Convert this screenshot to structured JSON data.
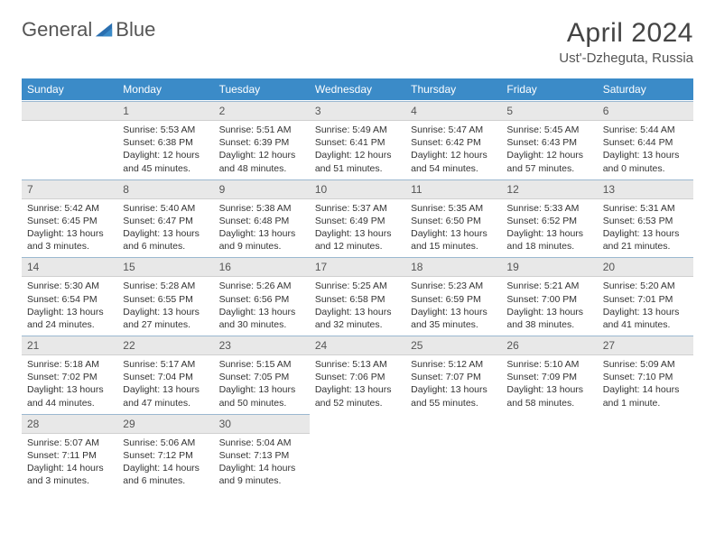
{
  "logo": {
    "text_left": "General",
    "text_right": "Blue"
  },
  "title": "April 2024",
  "subtitle": "Ust'-Dzheguta, Russia",
  "colors": {
    "header_bg": "#3b8bc8",
    "header_fg": "#ffffff",
    "daynum_bg": "#e8e8e8",
    "daynum_border_top": "#9bb8d0",
    "text": "#333333",
    "logo_text": "#555555",
    "logo_accent": "#2a6fb0"
  },
  "weekdays": [
    "Sunday",
    "Monday",
    "Tuesday",
    "Wednesday",
    "Thursday",
    "Friday",
    "Saturday"
  ],
  "first_weekday_index": 1,
  "days": [
    {
      "n": 1,
      "sunrise": "5:53 AM",
      "sunset": "6:38 PM",
      "daylight": "12 hours and 45 minutes."
    },
    {
      "n": 2,
      "sunrise": "5:51 AM",
      "sunset": "6:39 PM",
      "daylight": "12 hours and 48 minutes."
    },
    {
      "n": 3,
      "sunrise": "5:49 AM",
      "sunset": "6:41 PM",
      "daylight": "12 hours and 51 minutes."
    },
    {
      "n": 4,
      "sunrise": "5:47 AM",
      "sunset": "6:42 PM",
      "daylight": "12 hours and 54 minutes."
    },
    {
      "n": 5,
      "sunrise": "5:45 AM",
      "sunset": "6:43 PM",
      "daylight": "12 hours and 57 minutes."
    },
    {
      "n": 6,
      "sunrise": "5:44 AM",
      "sunset": "6:44 PM",
      "daylight": "13 hours and 0 minutes."
    },
    {
      "n": 7,
      "sunrise": "5:42 AM",
      "sunset": "6:45 PM",
      "daylight": "13 hours and 3 minutes."
    },
    {
      "n": 8,
      "sunrise": "5:40 AM",
      "sunset": "6:47 PM",
      "daylight": "13 hours and 6 minutes."
    },
    {
      "n": 9,
      "sunrise": "5:38 AM",
      "sunset": "6:48 PM",
      "daylight": "13 hours and 9 minutes."
    },
    {
      "n": 10,
      "sunrise": "5:37 AM",
      "sunset": "6:49 PM",
      "daylight": "13 hours and 12 minutes."
    },
    {
      "n": 11,
      "sunrise": "5:35 AM",
      "sunset": "6:50 PM",
      "daylight": "13 hours and 15 minutes."
    },
    {
      "n": 12,
      "sunrise": "5:33 AM",
      "sunset": "6:52 PM",
      "daylight": "13 hours and 18 minutes."
    },
    {
      "n": 13,
      "sunrise": "5:31 AM",
      "sunset": "6:53 PM",
      "daylight": "13 hours and 21 minutes."
    },
    {
      "n": 14,
      "sunrise": "5:30 AM",
      "sunset": "6:54 PM",
      "daylight": "13 hours and 24 minutes."
    },
    {
      "n": 15,
      "sunrise": "5:28 AM",
      "sunset": "6:55 PM",
      "daylight": "13 hours and 27 minutes."
    },
    {
      "n": 16,
      "sunrise": "5:26 AM",
      "sunset": "6:56 PM",
      "daylight": "13 hours and 30 minutes."
    },
    {
      "n": 17,
      "sunrise": "5:25 AM",
      "sunset": "6:58 PM",
      "daylight": "13 hours and 32 minutes."
    },
    {
      "n": 18,
      "sunrise": "5:23 AM",
      "sunset": "6:59 PM",
      "daylight": "13 hours and 35 minutes."
    },
    {
      "n": 19,
      "sunrise": "5:21 AM",
      "sunset": "7:00 PM",
      "daylight": "13 hours and 38 minutes."
    },
    {
      "n": 20,
      "sunrise": "5:20 AM",
      "sunset": "7:01 PM",
      "daylight": "13 hours and 41 minutes."
    },
    {
      "n": 21,
      "sunrise": "5:18 AM",
      "sunset": "7:02 PM",
      "daylight": "13 hours and 44 minutes."
    },
    {
      "n": 22,
      "sunrise": "5:17 AM",
      "sunset": "7:04 PM",
      "daylight": "13 hours and 47 minutes."
    },
    {
      "n": 23,
      "sunrise": "5:15 AM",
      "sunset": "7:05 PM",
      "daylight": "13 hours and 50 minutes."
    },
    {
      "n": 24,
      "sunrise": "5:13 AM",
      "sunset": "7:06 PM",
      "daylight": "13 hours and 52 minutes."
    },
    {
      "n": 25,
      "sunrise": "5:12 AM",
      "sunset": "7:07 PM",
      "daylight": "13 hours and 55 minutes."
    },
    {
      "n": 26,
      "sunrise": "5:10 AM",
      "sunset": "7:09 PM",
      "daylight": "13 hours and 58 minutes."
    },
    {
      "n": 27,
      "sunrise": "5:09 AM",
      "sunset": "7:10 PM",
      "daylight": "14 hours and 1 minute."
    },
    {
      "n": 28,
      "sunrise": "5:07 AM",
      "sunset": "7:11 PM",
      "daylight": "14 hours and 3 minutes."
    },
    {
      "n": 29,
      "sunrise": "5:06 AM",
      "sunset": "7:12 PM",
      "daylight": "14 hours and 6 minutes."
    },
    {
      "n": 30,
      "sunrise": "5:04 AM",
      "sunset": "7:13 PM",
      "daylight": "14 hours and 9 minutes."
    }
  ],
  "labels": {
    "sunrise_prefix": "Sunrise: ",
    "sunset_prefix": "Sunset: ",
    "daylight_prefix": "Daylight: "
  }
}
